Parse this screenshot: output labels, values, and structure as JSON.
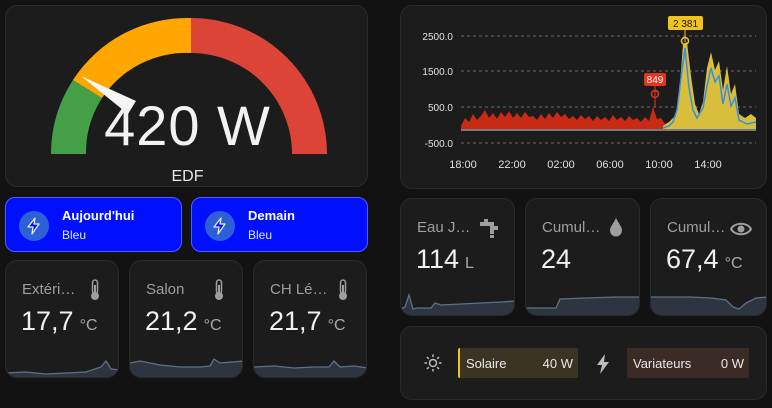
{
  "gauge": {
    "value": "420 W",
    "name": "EDF",
    "needle": 420,
    "min": 0,
    "max": 3000,
    "colors": [
      "#43a047",
      "#ffa600",
      "#db4437"
    ]
  },
  "tiles": [
    {
      "title": "Aujourd'hui",
      "subtitle": "Bleu",
      "icon": "lightning-icon"
    },
    {
      "title": "Demain",
      "subtitle": "Bleu",
      "icon": "lightning-icon"
    }
  ],
  "sensors": {
    "exterieur": {
      "name": "Extéri…",
      "value": "17,7",
      "unit": "°C",
      "icon": "thermometer-icon"
    },
    "salon": {
      "name": "Salon",
      "value": "21,2",
      "unit": "°C",
      "icon": "thermometer-icon"
    },
    "ch_leo": {
      "name": "CH Lé…",
      "value": "21,7",
      "unit": "°C",
      "icon": "thermometer-icon"
    },
    "eau": {
      "name": "Eau J…",
      "value": "114",
      "unit": "L",
      "icon": "water-tap-icon"
    },
    "cumul1": {
      "name": "Cumul…",
      "value": "24",
      "unit": "",
      "icon": "water-drop-icon"
    },
    "cumul2": {
      "name": "Cumul…",
      "value": "67,4",
      "unit": "°C",
      "icon": "eye-icon"
    }
  },
  "history": {
    "chart_data": {
      "type": "area",
      "x_ticks": [
        "18:00",
        "22:00",
        "02:00",
        "06:00",
        "10:00",
        "14:00"
      ],
      "y_ticks": [
        "2500.0",
        "1500.0",
        "500.0",
        "-500.0"
      ],
      "ylim": [
        -500,
        3000
      ],
      "annotations": [
        {
          "label": "849",
          "value": 849,
          "color": "#e8331c"
        },
        {
          "label": "2 381",
          "value": 2381,
          "color": "#f0c420"
        }
      ],
      "colors": {
        "grid": "#6a6a6a",
        "red": "#e8331c",
        "yellow": "#f0c420",
        "blue": "#3b8de0"
      }
    }
  },
  "power": {
    "solar_label": "Solaire",
    "solar_value": "40 W",
    "var_label": "Variateurs",
    "var_value": "0 W"
  }
}
